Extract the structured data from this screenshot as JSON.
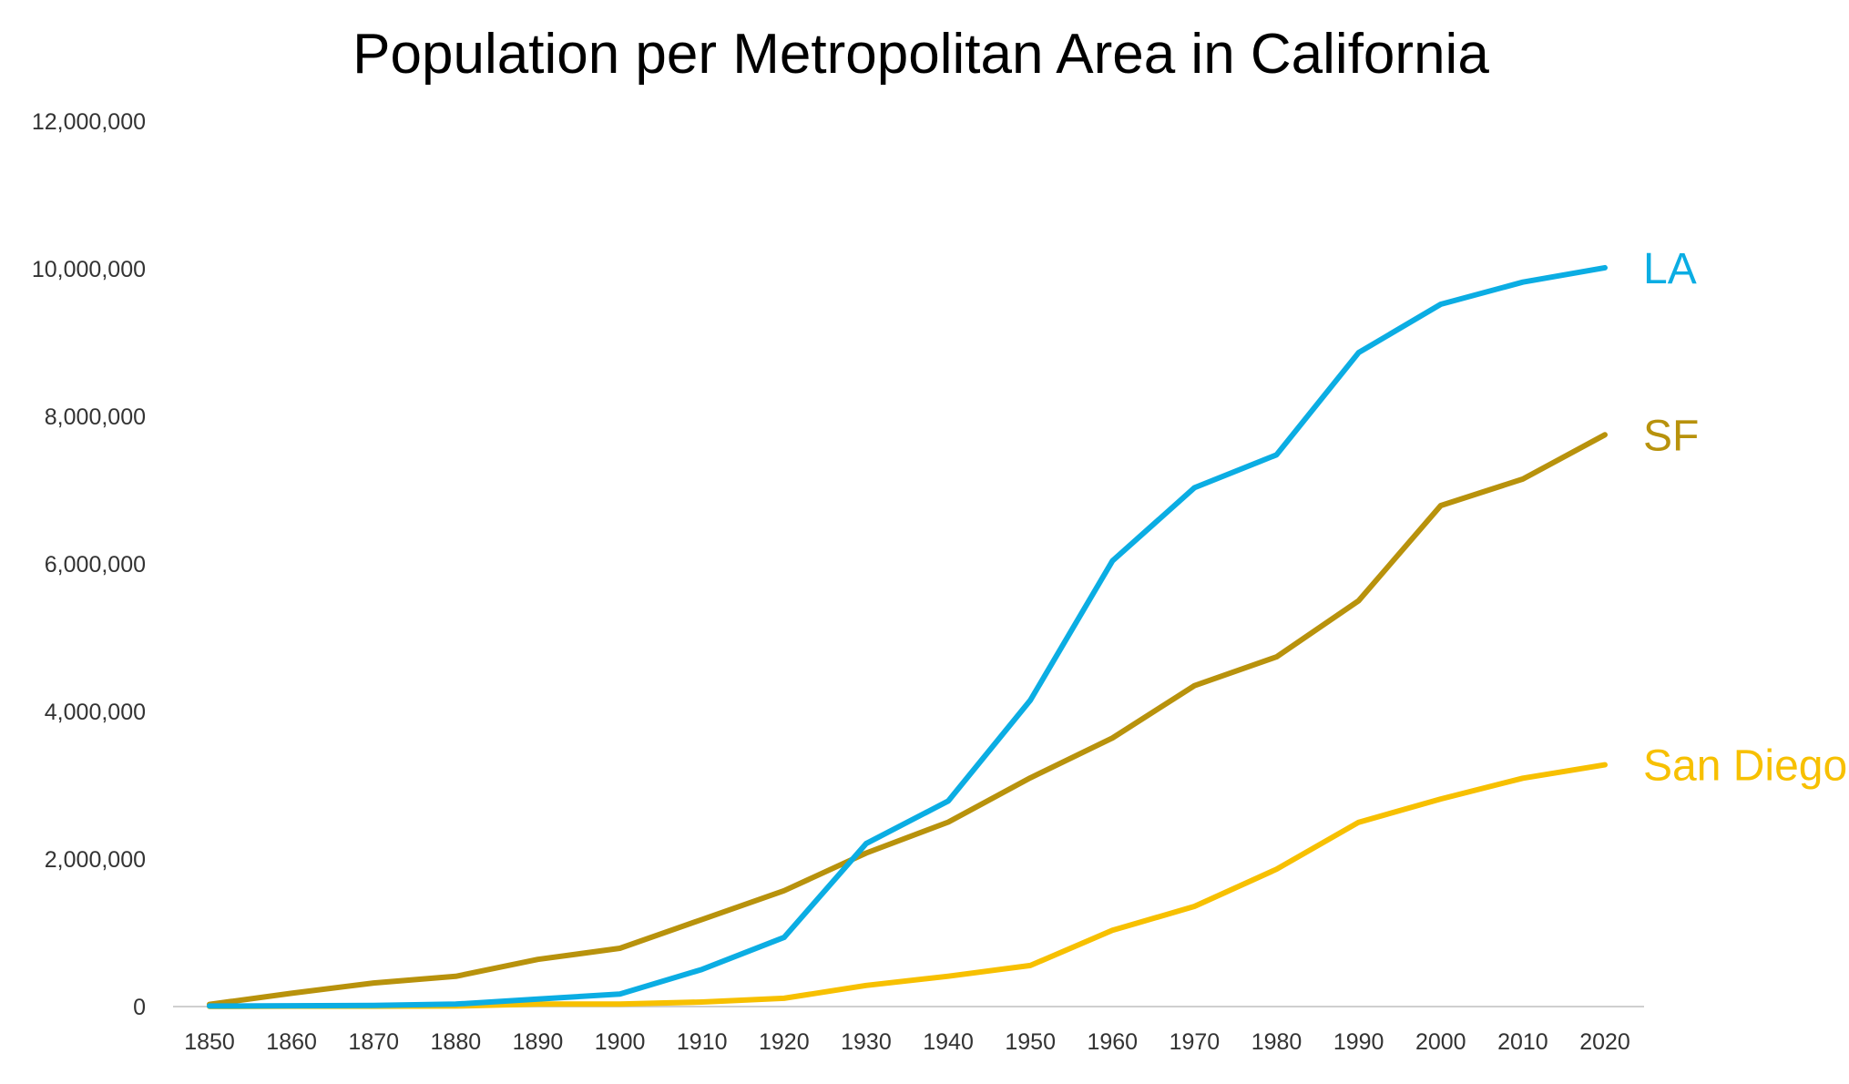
{
  "chart_data": {
    "type": "line",
    "title": "Population per Metropolitan Area in California",
    "xlabel": "",
    "ylabel": "",
    "x": [
      1850,
      1860,
      1870,
      1880,
      1890,
      1900,
      1910,
      1920,
      1930,
      1940,
      1950,
      1960,
      1970,
      1980,
      1990,
      2000,
      2010,
      2020
    ],
    "x_tick_labels": [
      "1850",
      "1860",
      "1870",
      "1880",
      "1890",
      "1900",
      "1910",
      "1920",
      "1930",
      "1940",
      "1950",
      "1960",
      "1970",
      "1980",
      "1990",
      "2000",
      "2010",
      "2020"
    ],
    "y_ticks": [
      0,
      2000000,
      4000000,
      6000000,
      8000000,
      10000000,
      12000000
    ],
    "y_tick_labels": [
      "0",
      "2,000,000",
      "4,000,000",
      "6,000,000",
      "8,000,000",
      "10,000,000",
      "12,000,000"
    ],
    "ylim": [
      0,
      12000000
    ],
    "grid": false,
    "legend": "direct labels at line ends",
    "series": [
      {
        "name": "LA",
        "color": "#0BADE3",
        "values": [
          8000,
          11000,
          15000,
          33000,
          101000,
          170000,
          504000,
          937000,
          2209000,
          2786000,
          4152000,
          6039000,
          7032000,
          7478000,
          8863000,
          9519000,
          9819000,
          10014000
        ]
      },
      {
        "name": "SF",
        "color": "#B8920C",
        "values": [
          30000,
          180000,
          320000,
          410000,
          640000,
          790000,
          1180000,
          1570000,
          2080000,
          2500000,
          3100000,
          3640000,
          4350000,
          4740000,
          5500000,
          6790000,
          7150000,
          7750000
        ]
      },
      {
        "name": "San Diego",
        "color": "#F7C000",
        "values": [
          1000,
          5000,
          5000,
          8000,
          35000,
          35000,
          62000,
          112000,
          286000,
          411000,
          557000,
          1033000,
          1358000,
          1862000,
          2498000,
          2814000,
          3095000,
          3276000
        ]
      }
    ]
  }
}
